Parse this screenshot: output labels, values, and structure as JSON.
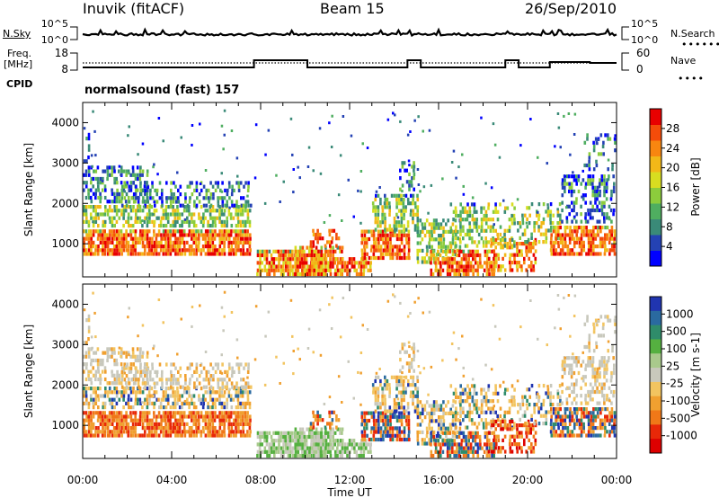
{
  "header": {
    "station": "Inuvik (fitACF)",
    "beam": "Beam 15",
    "date": "26/Sep/2010"
  },
  "side_labels": {
    "nsky": "N.Sky",
    "freq_line1": "Freq.",
    "freq_line2": "[MHz]",
    "cpid": "CPID",
    "nsearch": "N.Search",
    "nave": "Nave"
  },
  "cpid_text": "normalsound (fast) 157",
  "noise_panel": {
    "left_ticks": [
      "10^5",
      "10^0"
    ],
    "right_ticks": [
      "10^5",
      "10^0"
    ]
  },
  "freq_panel": {
    "left_ticks": [
      "18",
      "8"
    ],
    "right_ticks": [
      "60",
      "0"
    ]
  },
  "time_axis": {
    "label": "Time UT",
    "ticks": [
      "00:00",
      "04:00",
      "08:00",
      "12:00",
      "16:00",
      "20:00",
      "00:00"
    ],
    "range_hours": [
      0,
      24
    ]
  },
  "range_axis": {
    "label": "Slant Range [km]",
    "ticks": [
      "1000",
      "2000",
      "3000",
      "4000"
    ],
    "range_km": [
      180,
      4500
    ]
  },
  "chart_data": [
    {
      "type": "heatmap",
      "name": "power",
      "xlabel": "Time UT",
      "ylabel": "Slant Range [km]",
      "xlim": [
        0,
        24
      ],
      "ylim": [
        180,
        4500
      ],
      "colorbar": {
        "label": "Power [dB]",
        "ticks": [
          "4",
          "8",
          "12",
          "16",
          "20",
          "24",
          "28"
        ],
        "colors": [
          "#0000ff",
          "#2442b4",
          "#3a8a78",
          "#4fae60",
          "#8ccc3c",
          "#d8dd20",
          "#f2b818",
          "#f88610",
          "#f44c0a",
          "#e80000"
        ]
      }
    },
    {
      "type": "heatmap",
      "name": "velocity",
      "xlabel": "Time UT",
      "ylabel": "Slant Range [km]",
      "xlim": [
        0,
        24
      ],
      "ylim": [
        180,
        4500
      ],
      "colorbar": {
        "label": "Velocity [m s-1]",
        "ticks": [
          "1000",
          "500",
          "100",
          "25",
          "-25",
          "-100",
          "-500",
          "-1000"
        ],
        "colors": [
          "#2035b0",
          "#2a6aa0",
          "#2f8c6a",
          "#55b040",
          "#a9c98c",
          "#c8c8bc",
          "#f2c460",
          "#f0a030",
          "#f07818",
          "#e82808",
          "#dd0000"
        ]
      }
    }
  ]
}
